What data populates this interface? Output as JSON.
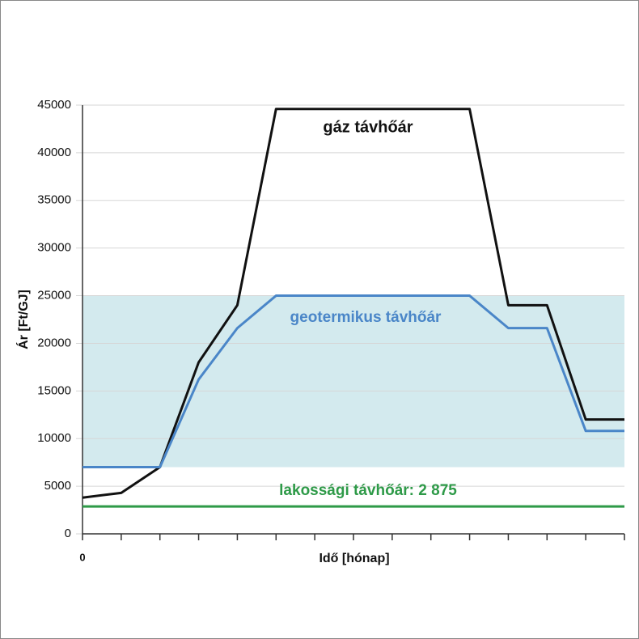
{
  "chart_data": {
    "type": "line",
    "categories": [
      "0",
      null,
      null,
      null,
      null,
      null,
      null,
      null,
      null,
      null,
      null,
      null,
      null,
      null,
      null
    ],
    "series": [
      {
        "name": "gáz távhőár",
        "color": "#111111",
        "values": [
          3800,
          4300,
          7000,
          18000,
          24000,
          44600,
          44600,
          44600,
          44600,
          44600,
          44600,
          24000,
          24000,
          12000,
          12000
        ]
      },
      {
        "name": "geotermikus távhőár",
        "color": "#4a86c8",
        "values": [
          7000,
          7000,
          7000,
          16200,
          21600,
          25000,
          25000,
          25000,
          25000,
          25000,
          25000,
          21600,
          21600,
          10800,
          10800
        ]
      },
      {
        "name": "lakossági távhőár:  2 875",
        "color": "#2e9a48",
        "values": [
          2875,
          2875,
          2875,
          2875,
          2875,
          2875,
          2875,
          2875,
          2875,
          2875,
          2875,
          2875,
          2875,
          2875,
          2875
        ]
      }
    ],
    "band": [
      7000,
      25000
    ],
    "band_color": "#d3eaee",
    "xlabel": "Idő [hónap]",
    "ylabel": "Ár [Ft/GJ]",
    "ylim": [
      0,
      45000
    ],
    "yticks": [
      0,
      5000,
      10000,
      15000,
      20000,
      25000,
      30000,
      35000,
      40000,
      45000
    ],
    "grid": true
  }
}
